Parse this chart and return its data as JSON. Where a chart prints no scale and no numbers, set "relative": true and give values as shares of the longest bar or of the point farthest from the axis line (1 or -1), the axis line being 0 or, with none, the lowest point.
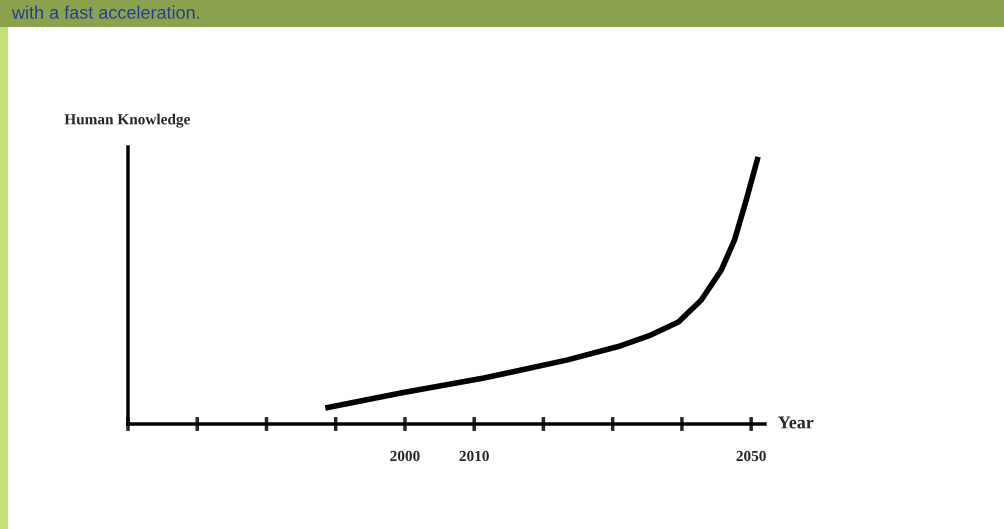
{
  "chart_data": {
    "type": "line",
    "title": "with a fast acceleration.",
    "ylabel": "Human Knowledge",
    "xlabel": "Year",
    "relative": true,
    "xlim": [
      1960,
      2052
    ],
    "xticks": [
      {
        "value": 1960,
        "label": null
      },
      {
        "value": 1970,
        "label": null
      },
      {
        "value": 1980,
        "label": null
      },
      {
        "value": 1990,
        "label": null
      },
      2000,
      2010,
      {
        "value": 2020,
        "label": null
      },
      {
        "value": 2030,
        "label": null
      },
      {
        "value": 2040,
        "label": null
      },
      2050
    ],
    "series": [
      {
        "color": "#000000",
        "x": [
          1988.5,
          1999.4,
          2011.4,
          2023.5,
          2030.8,
          2035.5,
          2039.5,
          2042.8,
          2045.7,
          2047.6,
          2049.3,
          2051
        ],
        "values": [
          0.06,
          0.116,
          0.172,
          0.24,
          0.29,
          0.333,
          0.382,
          0.464,
          0.577,
          0.689,
          0.839,
          1.0
        ]
      }
    ],
    "grid": false
  }
}
